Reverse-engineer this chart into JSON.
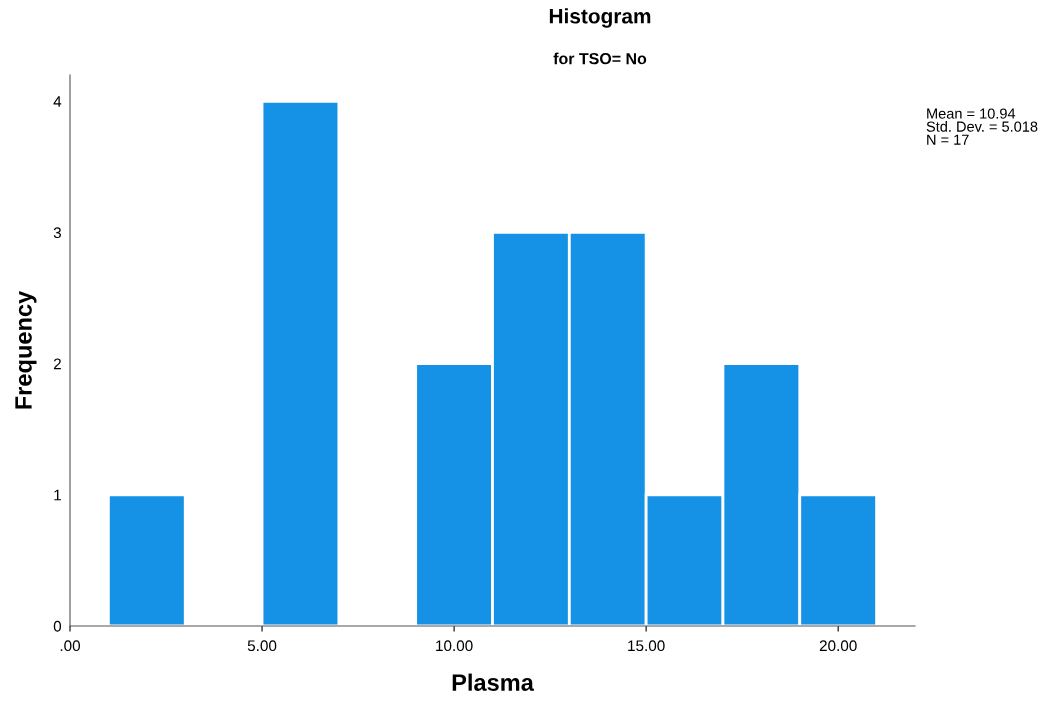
{
  "chart_data": {
    "type": "histogram",
    "title": "Histogram",
    "subtitle": "for TSO= No",
    "xlabel": "Plasma",
    "ylabel": "Frequency",
    "bins": [
      1,
      3,
      5,
      7,
      9,
      11,
      13,
      15,
      17,
      19,
      21
    ],
    "values": [
      1,
      0,
      4,
      0,
      2,
      3,
      3,
      1,
      2,
      1
    ],
    "color": "#1591e6",
    "xlim": [
      0,
      22
    ],
    "ylim": [
      0,
      4.2
    ],
    "xticks": [
      {
        "value": 0,
        "label": ".00"
      },
      {
        "value": 5,
        "label": "5.00"
      },
      {
        "value": 10,
        "label": "10.00"
      },
      {
        "value": 15,
        "label": "15.00"
      },
      {
        "value": 20,
        "label": "20.00"
      }
    ],
    "yticks": [
      0,
      1,
      2,
      3,
      4
    ],
    "annotations": [
      "Mean = 10.94\nStd. Dev. = 5.018\nN = 17"
    ],
    "grid": false,
    "legend": false
  }
}
